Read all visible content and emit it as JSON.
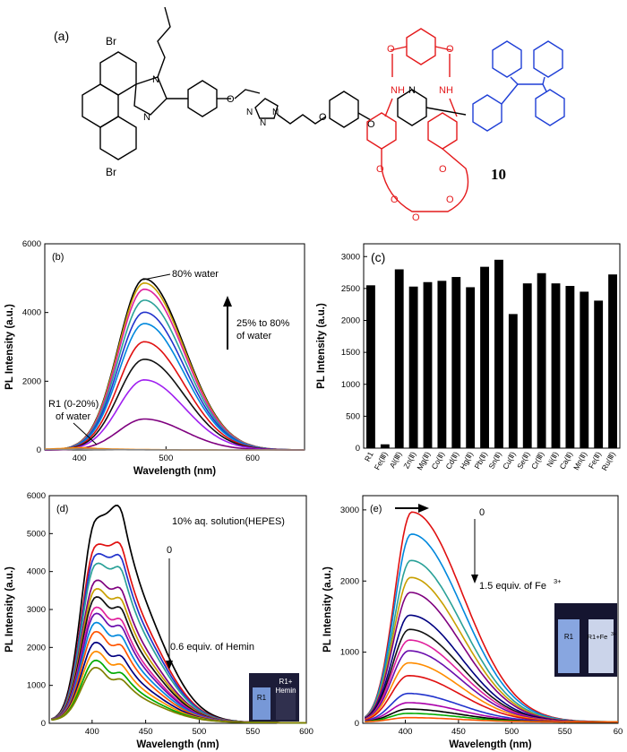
{
  "structure": {
    "label": "(a)",
    "compound_number": "10",
    "atoms": [
      "Br",
      "Br",
      "N",
      "N",
      "N",
      "N",
      "N",
      "O",
      "O",
      "O",
      "O",
      "O",
      "O",
      "O",
      "O",
      "O",
      "O",
      "NH",
      "NH",
      "N"
    ]
  },
  "colors": {
    "host_macrocycle": "#e41a1c",
    "tetraphenylethylene": "#1f3fd6",
    "bar": "#000000"
  },
  "chart_data": [
    {
      "panel": "(b)",
      "type": "line",
      "xlabel": "Wavelength (nm)",
      "ylabel": "PL Intensity (a.u.)",
      "xlim": [
        360,
        660
      ],
      "ylim": [
        0,
        6000
      ],
      "xticks": [
        400,
        500,
        600
      ],
      "yticks": [
        0,
        2000,
        4000,
        6000
      ],
      "annotations": [
        "80% water",
        "25% to 80%",
        "of water",
        "R1 (0-20%)",
        "of water"
      ],
      "peak_x": 475,
      "series_peaks": [
        4980,
        4860,
        4680,
        4360,
        4010,
        3680,
        3150,
        2640,
        2040,
        900,
        0,
        0
      ],
      "series_colors": [
        "#000000",
        "#c8a000",
        "#e0209c",
        "#2aa198",
        "#2233cc",
        "#0088dd",
        "#e01010",
        "#111111",
        "#a020f0",
        "#7f007f",
        "#ff8800",
        "#888888"
      ]
    },
    {
      "panel": "(c)",
      "type": "bar",
      "ylabel": "PL Intensity (a.u.)",
      "ylim": [
        0,
        3200
      ],
      "yticks": [
        0,
        500,
        1000,
        1500,
        2000,
        2500,
        3000
      ],
      "categories": [
        "R1",
        "Fe(Ⅲ)",
        "Al(Ⅲ)",
        "Zn(Ⅱ)",
        "Mg(Ⅱ)",
        "Co(Ⅱ)",
        "Cd(Ⅱ)",
        "Hg(Ⅱ)",
        "Pb(Ⅱ)",
        "Sn(Ⅱ)",
        "Cu(Ⅱ)",
        "Se(Ⅱ)",
        "Cr(Ⅲ)",
        "Ni(Ⅱ)",
        "Ca(Ⅱ)",
        "Mn(Ⅱ)",
        "Fe(Ⅱ)",
        "Ru(Ⅲ)"
      ],
      "values": [
        2550,
        60,
        2800,
        2530,
        2600,
        2620,
        2680,
        2520,
        2840,
        2950,
        2100,
        2580,
        2740,
        2580,
        2540,
        2450,
        2310,
        2720
      ]
    },
    {
      "panel": "(d)",
      "type": "line",
      "xlabel": "Wavelength (nm)",
      "ylabel": "PL Intensity (a.u.)",
      "xlim": [
        360,
        600
      ],
      "ylim": [
        0,
        6000
      ],
      "xticks": [
        400,
        450,
        500,
        550,
        600
      ],
      "yticks": [
        0,
        1000,
        2000,
        3000,
        4000,
        5000,
        6000
      ],
      "annotations": [
        "10% aq. solution(HEPES)",
        "0",
        "0.6 equiv. of Hemin"
      ],
      "inset_labels": [
        "R1",
        "R1+",
        "Hemin"
      ],
      "series_peaks": [
        5500,
        4800,
        4550,
        4300,
        3850,
        3620,
        3400,
        3120,
        2950,
        2700,
        2450,
        2150,
        1900,
        1650,
        1450
      ],
      "series_colors": [
        "#000000",
        "#e01010",
        "#2233cc",
        "#2aa198",
        "#7f007f",
        "#c8a000",
        "#111111",
        "#e0209c",
        "#6a0dad",
        "#0088dd",
        "#ff5500",
        "#000080",
        "#ff8c00",
        "#00aa00",
        "#808000"
      ]
    },
    {
      "panel": "(e)",
      "type": "line",
      "xlabel": "Wavelength (nm)",
      "ylabel": "PL Intensity (a.u.)",
      "xlim": [
        360,
        600
      ],
      "ylim": [
        0,
        3200
      ],
      "xticks": [
        400,
        450,
        500,
        550,
        60
      ],
      "yticks": [
        0,
        1000,
        2000,
        3000
      ],
      "annotations": [
        "0",
        "1.5 equiv. of Fe",
        "3+"
      ],
      "inset_labels": [
        "R1",
        "R1+Fe",
        "3+"
      ],
      "series_peaks": [
        2950,
        2640,
        2270,
        2030,
        1820,
        1500,
        1300,
        1150,
        1000,
        830,
        650,
        400,
        270,
        180,
        120,
        60
      ],
      "series_colors": [
        "#e01010",
        "#0088dd",
        "#2aa198",
        "#c8a000",
        "#7f007f",
        "#000080",
        "#111111",
        "#e0209c",
        "#6a0dad",
        "#ff8c00",
        "#e01010",
        "#2233cc",
        "#aa00aa",
        "#000000",
        "#00aa00",
        "#ff5500"
      ]
    }
  ]
}
